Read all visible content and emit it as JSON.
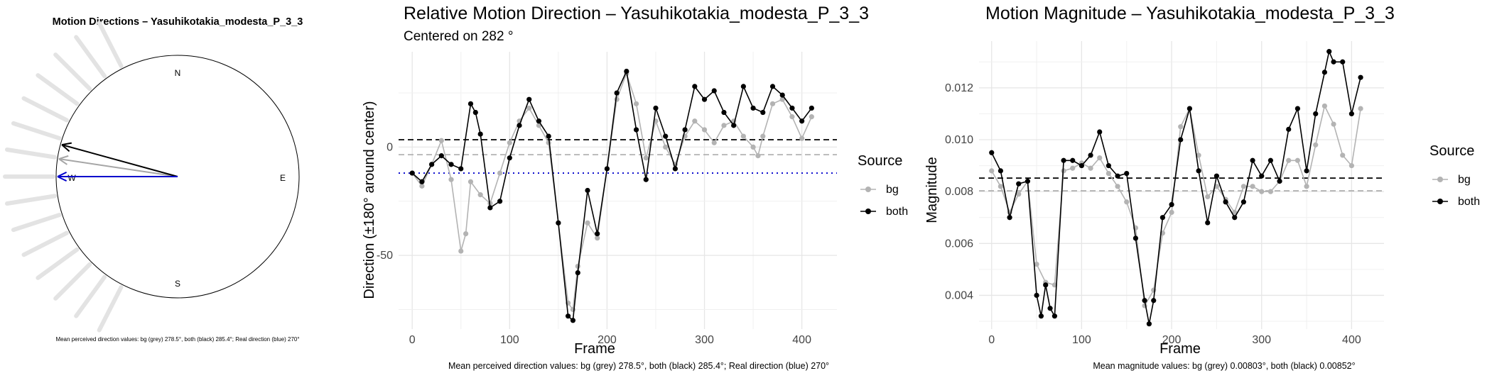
{
  "chart_data": [
    {
      "type": "scatter",
      "subtype": "compass",
      "title": "Motion Directions – Yasuhikotakia_modesta_P_3_3",
      "cardinals": {
        "N": "N",
        "E": "E",
        "S": "S",
        "W": "W"
      },
      "arrows": [
        {
          "name": "bg",
          "angle_deg": 278.5,
          "color": "#a6a6a6"
        },
        {
          "name": "both",
          "angle_deg": 285.4,
          "color": "#000000"
        },
        {
          "name": "Real direction",
          "angle_deg": 270,
          "color": "#0000cc"
        }
      ],
      "spokes_deg": [
        207,
        216,
        225,
        234,
        243,
        252,
        261,
        270,
        279,
        288,
        297,
        306,
        315,
        324,
        333
      ],
      "caption": "Mean perceived direction values: bg (grey) 278.5°, both (black) 285.4°; Real direction (blue) 270°"
    },
    {
      "type": "line",
      "title": "Relative Motion Direction – Yasuhikotakia_modesta_P_3_3",
      "subtitle": "Centered on  282 °",
      "xlabel": "Frame",
      "ylabel": "Direction (±180° around center)",
      "xlim": [
        -14,
        436
      ],
      "ylim": [
        -84,
        44
      ],
      "xticks": [
        0,
        100,
        200,
        300,
        400
      ],
      "yticks": [
        -50,
        0
      ],
      "grid": true,
      "legend_title": "Source",
      "legend_position": "right",
      "series": [
        {
          "name": "bg",
          "color": "#b3b3b3",
          "x": [
            0,
            10,
            20,
            30,
            40,
            50,
            55,
            60,
            70,
            80,
            90,
            100,
            110,
            120,
            130,
            140,
            150,
            160,
            165,
            170,
            180,
            190,
            200,
            210,
            220,
            230,
            240,
            250,
            260,
            270,
            280,
            290,
            300,
            310,
            320,
            330,
            340,
            350,
            355,
            360,
            370,
            380,
            390,
            400,
            410
          ],
          "y": [
            -12,
            -18,
            -8,
            3,
            -15,
            -48,
            -40,
            -16,
            -22,
            -26,
            -12,
            2,
            12,
            18,
            10,
            2,
            -35,
            -72,
            -75,
            -55,
            -35,
            -42,
            -10,
            22,
            34,
            20,
            -5,
            12,
            0,
            -8,
            5,
            12,
            8,
            2,
            10,
            12,
            5,
            0,
            -4,
            5,
            20,
            22,
            14,
            4,
            14
          ]
        },
        {
          "name": "both",
          "color": "#000000",
          "x": [
            0,
            10,
            20,
            30,
            40,
            50,
            60,
            65,
            70,
            80,
            90,
            100,
            110,
            120,
            130,
            140,
            150,
            160,
            165,
            170,
            180,
            190,
            200,
            210,
            220,
            230,
            240,
            250,
            260,
            270,
            280,
            290,
            300,
            310,
            320,
            330,
            340,
            350,
            360,
            370,
            380,
            390,
            400,
            410
          ],
          "y": [
            -12,
            -16,
            -8,
            -4,
            -8,
            -10,
            20,
            16,
            6,
            -28,
            -25,
            -5,
            10,
            22,
            12,
            5,
            -35,
            -78,
            -80,
            -58,
            -20,
            -40,
            -10,
            25,
            35,
            8,
            -15,
            18,
            5,
            -10,
            8,
            28,
            22,
            26,
            16,
            10,
            28,
            18,
            16,
            28,
            24,
            18,
            12,
            18
          ]
        }
      ],
      "hlines": [
        {
          "name": "both mean",
          "y": 3.4,
          "style": "dashed",
          "color": "#000000"
        },
        {
          "name": "bg mean",
          "y": -3.5,
          "style": "dashed",
          "color": "#b3b3b3"
        },
        {
          "name": "real direction",
          "y": -12,
          "style": "dotted",
          "color": "#0000cc"
        }
      ],
      "caption": "Mean perceived direction values: bg (grey) 278.5°, both (black) 285.4°; Real direction (blue) 270°"
    },
    {
      "type": "line",
      "title": "Motion Magnitude – Yasuhikotakia_modesta_P_3_3",
      "xlabel": "Frame",
      "ylabel": "Magnitude",
      "xlim": [
        -14,
        436
      ],
      "ylim": [
        0.0027,
        0.0138
      ],
      "xticks": [
        0,
        100,
        200,
        300,
        400
      ],
      "yticks": [
        0.004,
        0.006,
        0.008,
        0.01,
        0.012
      ],
      "ytick_labels": [
        "0.004",
        "0.006",
        "0.008",
        "0.010",
        "0.012"
      ],
      "grid": true,
      "legend_title": "Source",
      "legend_position": "right",
      "series": [
        {
          "name": "bg",
          "color": "#b3b3b3",
          "x": [
            0,
            10,
            20,
            30,
            40,
            50,
            60,
            70,
            80,
            90,
            100,
            110,
            120,
            130,
            140,
            150,
            160,
            170,
            180,
            190,
            200,
            210,
            220,
            230,
            240,
            250,
            260,
            270,
            280,
            290,
            300,
            310,
            320,
            330,
            340,
            350,
            360,
            370,
            380,
            390,
            400,
            410
          ],
          "y": [
            0.0088,
            0.0082,
            0.0072,
            0.0079,
            0.0084,
            0.0052,
            0.0045,
            0.0044,
            0.0088,
            0.0089,
            0.0091,
            0.0089,
            0.0093,
            0.0087,
            0.0082,
            0.0076,
            0.0066,
            0.0036,
            0.0042,
            0.0064,
            0.0072,
            0.0105,
            0.0112,
            0.0094,
            0.0078,
            0.0082,
            0.0077,
            0.0072,
            0.0082,
            0.0082,
            0.008,
            0.008,
            0.0084,
            0.0092,
            0.0092,
            0.0082,
            0.0098,
            0.0113,
            0.0106,
            0.0094,
            0.009,
            0.0112
          ]
        },
        {
          "name": "both",
          "color": "#000000",
          "x": [
            0,
            10,
            20,
            30,
            40,
            50,
            55,
            60,
            65,
            70,
            80,
            90,
            100,
            110,
            120,
            130,
            140,
            150,
            160,
            170,
            175,
            180,
            190,
            200,
            210,
            220,
            230,
            240,
            250,
            260,
            270,
            280,
            290,
            300,
            310,
            320,
            330,
            340,
            350,
            360,
            370,
            375,
            380,
            390,
            400,
            410
          ],
          "y": [
            0.0095,
            0.0088,
            0.007,
            0.0083,
            0.0084,
            0.004,
            0.0032,
            0.0044,
            0.0035,
            0.0032,
            0.0092,
            0.0092,
            0.009,
            0.0094,
            0.0103,
            0.009,
            0.0086,
            0.0087,
            0.0062,
            0.0038,
            0.0029,
            0.0038,
            0.007,
            0.0075,
            0.01,
            0.0112,
            0.0088,
            0.0068,
            0.0086,
            0.0076,
            0.007,
            0.0076,
            0.0092,
            0.0086,
            0.0092,
            0.0084,
            0.0104,
            0.0112,
            0.0088,
            0.011,
            0.0126,
            0.0134,
            0.013,
            0.013,
            0.011,
            0.0124
          ]
        }
      ],
      "hlines": [
        {
          "name": "both mean",
          "y": 0.00852,
          "style": "dashed",
          "color": "#000000"
        },
        {
          "name": "bg mean",
          "y": 0.00803,
          "style": "dashed",
          "color": "#b3b3b3"
        }
      ],
      "caption": "Mean magnitude values: bg (grey) 0.00803°, both (black) 0.00852°"
    }
  ]
}
